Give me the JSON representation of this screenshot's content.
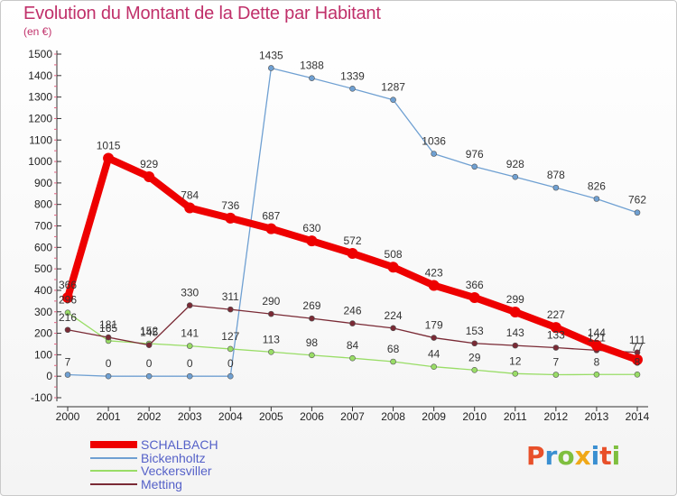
{
  "title": "Evolution du Montant de la Dette par Habitant",
  "subtitle": "(en €)",
  "logo": {
    "text": "Proxiti",
    "colors": [
      "#e8502a",
      "#3a8fd1",
      "#7fbf3f",
      "#f0a818",
      "#3a8fd1",
      "#e8502a",
      "#7fbf3f"
    ]
  },
  "chart_data": {
    "type": "line",
    "title": "Evolution du Montant de la Dette par Habitant",
    "subtitle": "(en €)",
    "x": [
      "2000",
      "2001",
      "2002",
      "2003",
      "2004",
      "2005",
      "2006",
      "2007",
      "2008",
      "2009",
      "2010",
      "2011",
      "2012",
      "2013",
      "2014"
    ],
    "ylim": [
      -100,
      1500
    ],
    "yticks": [
      -100,
      0,
      100,
      200,
      300,
      400,
      500,
      600,
      700,
      800,
      900,
      1000,
      1100,
      1200,
      1300,
      1400,
      1500
    ],
    "grid": false,
    "legend_placement": "bottom-left",
    "series": [
      {
        "name": "SCHALBACH",
        "color": "#ee0000",
        "emphasis": true,
        "values": [
          366,
          1015,
          929,
          784,
          736,
          687,
          630,
          572,
          508,
          423,
          366,
          299,
          227,
          144,
          77
        ]
      },
      {
        "name": "Bickenholtz",
        "color": "#6fa0d2",
        "emphasis": false,
        "values": [
          7,
          0,
          0,
          0,
          0,
          1435,
          1388,
          1339,
          1287,
          1036,
          976,
          928,
          878,
          826,
          762
        ]
      },
      {
        "name": "Veckersviller",
        "color": "#99dd66",
        "emphasis": false,
        "values": [
          296,
          165,
          152,
          141,
          127,
          113,
          98,
          84,
          68,
          44,
          29,
          12,
          7,
          8,
          8
        ]
      },
      {
        "name": "Metting",
        "color": "#7a2a35",
        "emphasis": false,
        "values": [
          216,
          181,
          145,
          330,
          311,
          290,
          269,
          246,
          224,
          179,
          153,
          143,
          133,
          121,
          111
        ]
      }
    ]
  }
}
